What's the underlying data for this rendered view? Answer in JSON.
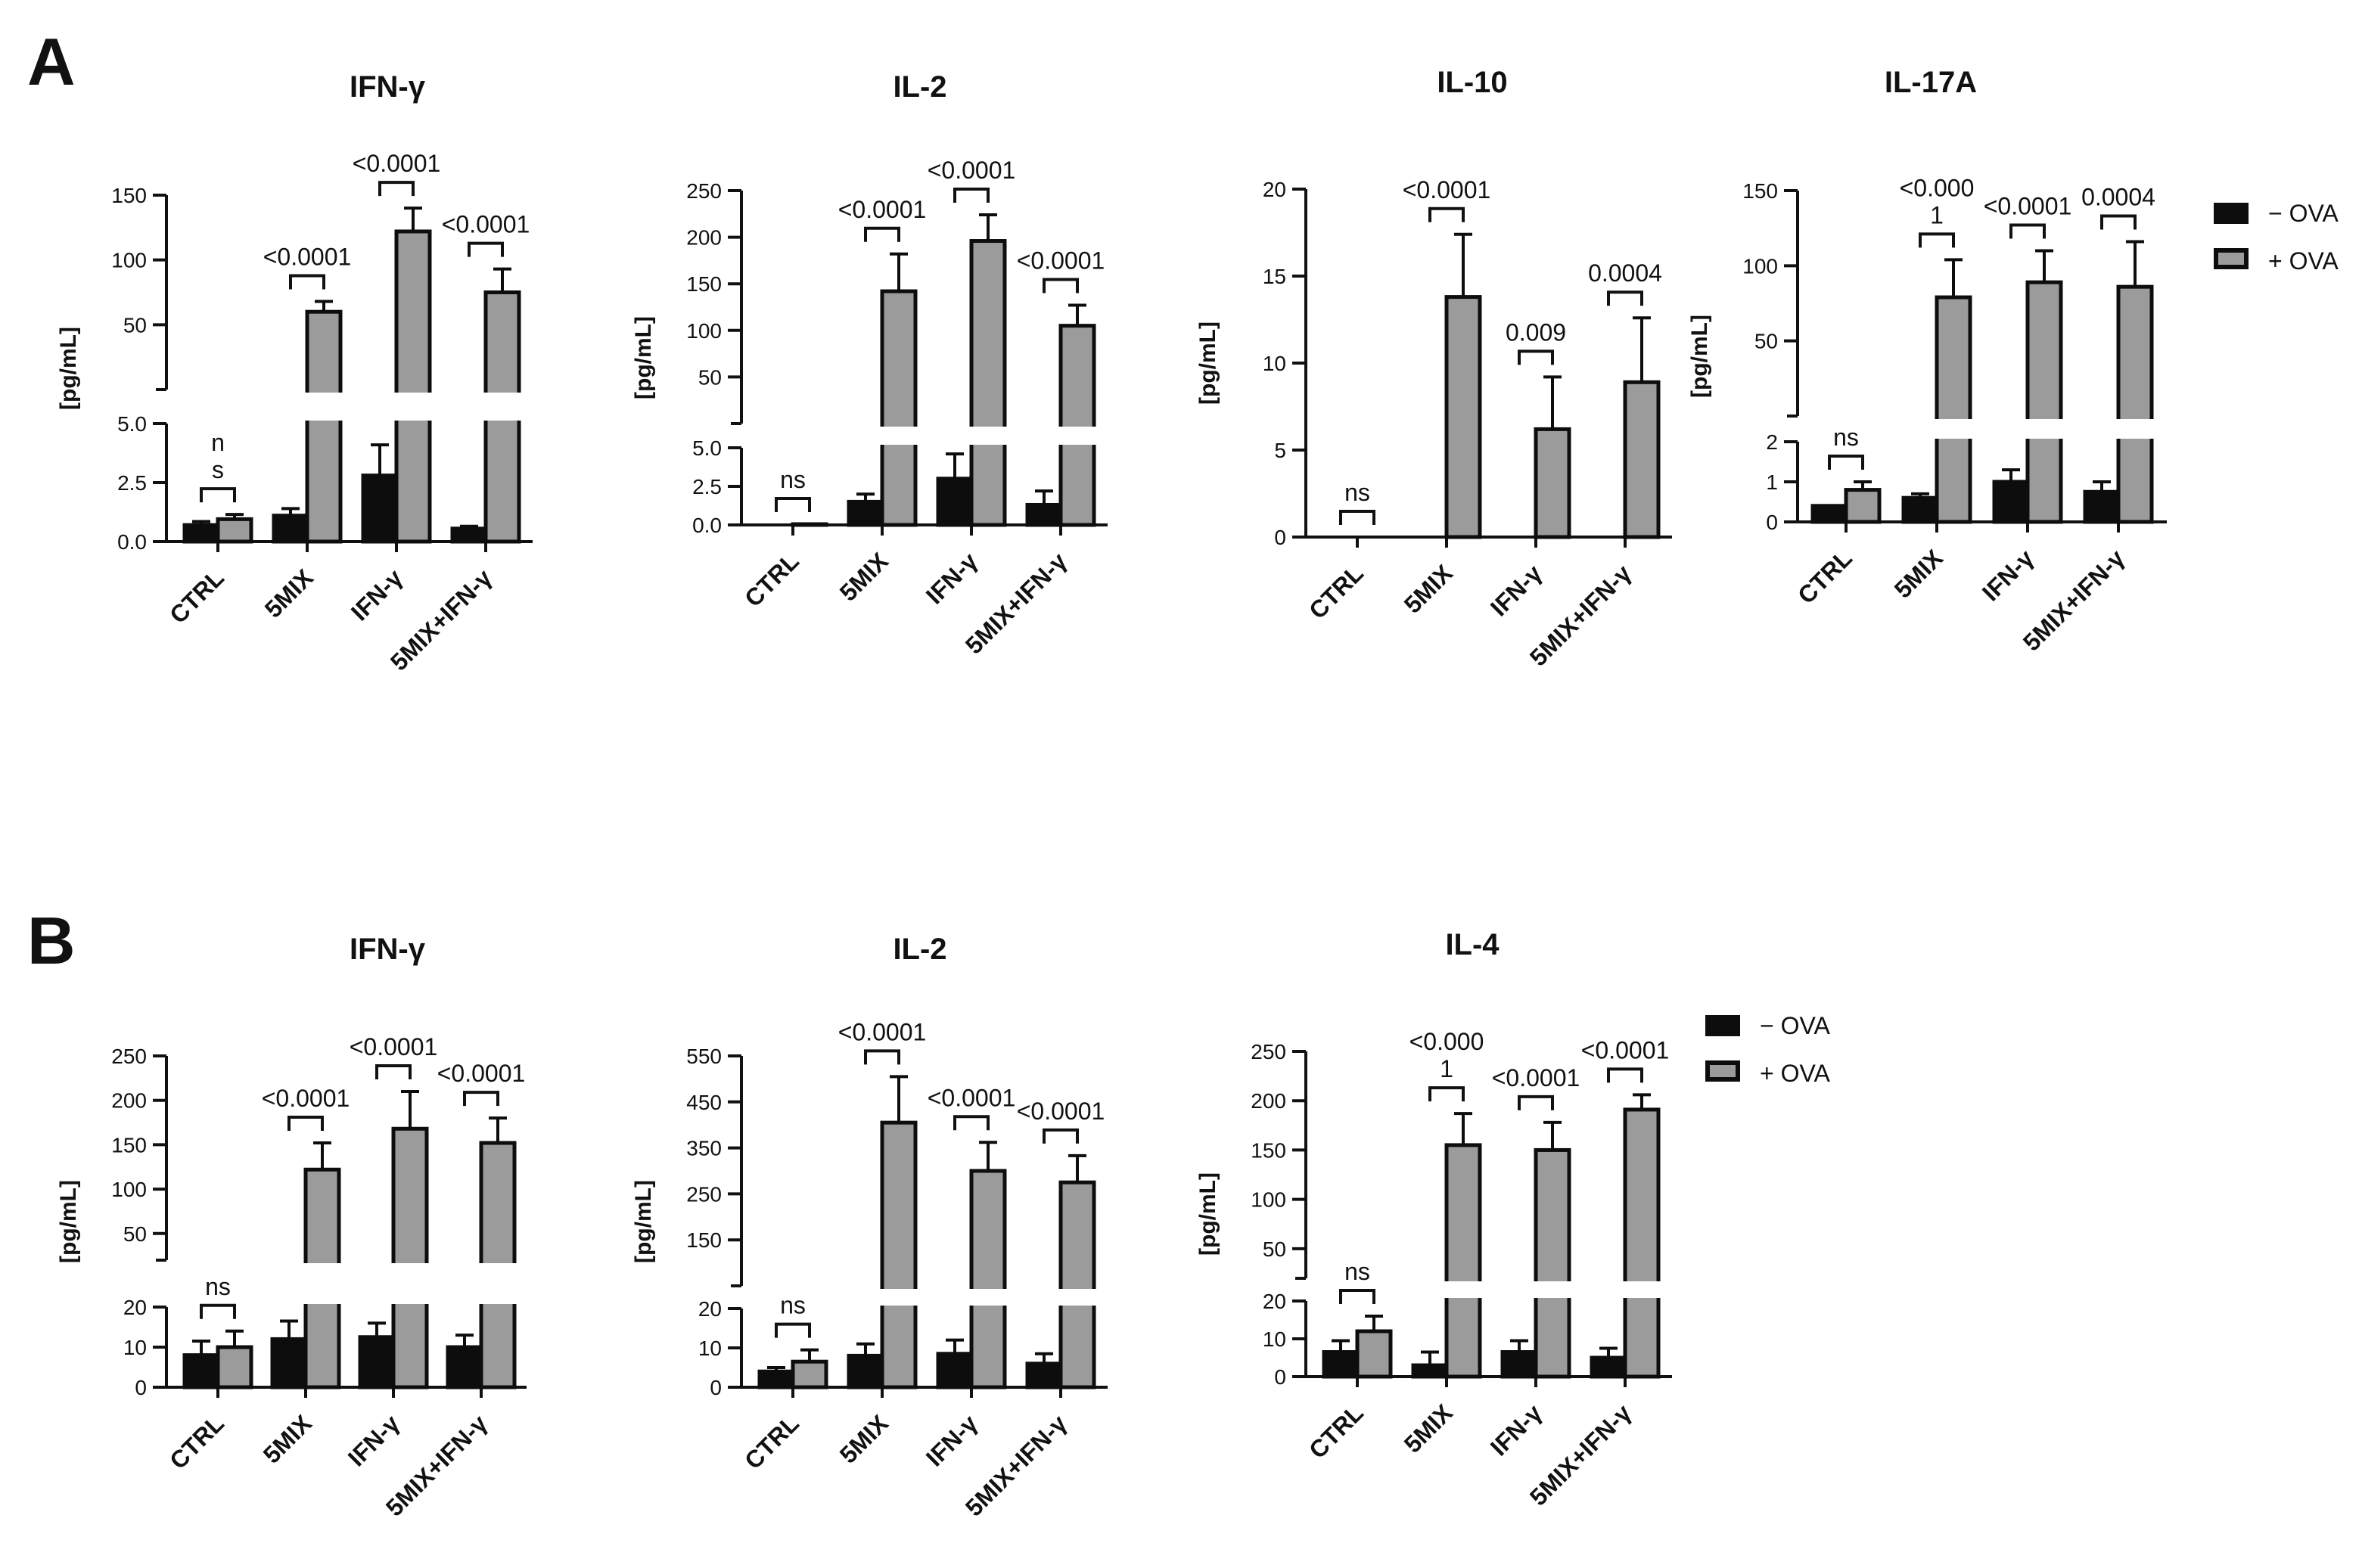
{
  "figure": {
    "legend_labels": [
      "− OVA",
      "+ OVA"
    ],
    "series_colors": {
      "neg": "#0d0d0d",
      "pos": "#9b9b9b"
    },
    "panels": [
      {
        "letter": "A"
      },
      {
        "letter": "B"
      }
    ]
  },
  "chart_data": [
    {
      "panel": "A",
      "type": "bar",
      "title": "IFN-γ",
      "ylabel": "[pg/mL]",
      "categories": [
        "CTRL",
        "5MIX",
        "IFN-γ",
        "5MIX+IFN-γ"
      ],
      "broken_axis": {
        "lower": [
          0,
          5
        ],
        "upper": [
          0,
          150
        ]
      },
      "lower_ticks": [
        "0.0",
        "2.5",
        "5.0"
      ],
      "lower_tick_values": [
        0,
        2.5,
        5
      ],
      "upper_ticks": [
        "50",
        "100",
        "150"
      ],
      "upper_tick_values": [
        50,
        100,
        150
      ],
      "series": [
        {
          "name": "− OVA",
          "values": [
            0.7,
            1.1,
            2.8,
            0.55
          ],
          "errors": [
            0.15,
            0.3,
            1.3,
            0.1
          ]
        },
        {
          "name": "+ OVA",
          "values": [
            0.95,
            60,
            122,
            75
          ],
          "errors": [
            0.2,
            8,
            18,
            18
          ]
        }
      ],
      "annotations": [
        "n\ns",
        "<0.0001",
        "<0.0001",
        "<0.0001"
      ]
    },
    {
      "panel": "A",
      "type": "bar",
      "title": "IL-2",
      "ylabel": "[pg/mL]",
      "categories": [
        "CTRL",
        "5MIX",
        "IFN-γ",
        "5MIX+IFN-γ"
      ],
      "broken_axis": {
        "lower": [
          0,
          5
        ],
        "upper": [
          0,
          250
        ]
      },
      "lower_ticks": [
        "0.0",
        "2.5",
        "5.0"
      ],
      "lower_tick_values": [
        0,
        2.5,
        5
      ],
      "upper_ticks": [
        "50",
        "100",
        "150",
        "200",
        "250"
      ],
      "upper_tick_values": [
        50,
        100,
        150,
        200,
        250
      ],
      "series": [
        {
          "name": "− OVA",
          "values": [
            0,
            1.5,
            3,
            1.3
          ],
          "errors": [
            0,
            0.5,
            1.6,
            0.9
          ]
        },
        {
          "name": "+ OVA",
          "values": [
            0.05,
            142,
            196,
            105
          ],
          "errors": [
            0,
            40,
            28,
            22
          ]
        }
      ],
      "annotations": [
        "ns",
        "<0.0001",
        "<0.0001",
        "<0.0001"
      ]
    },
    {
      "panel": "A",
      "type": "bar",
      "title": "IL-10",
      "ylabel": "[pg/mL]",
      "categories": [
        "CTRL",
        "5MIX",
        "IFN-γ",
        "5MIX+IFN-γ"
      ],
      "ylim": [
        0,
        20
      ],
      "ticks": [
        "0",
        "5",
        "10",
        "15",
        "20"
      ],
      "tick_values": [
        0,
        5,
        10,
        15,
        20
      ],
      "series": [
        {
          "name": "− OVA",
          "values": [
            0,
            0,
            0,
            0
          ],
          "errors": [
            0,
            0,
            0,
            0
          ]
        },
        {
          "name": "+ OVA",
          "values": [
            0,
            13.8,
            6.2,
            8.9
          ],
          "errors": [
            0,
            3.6,
            3.0,
            3.7
          ]
        }
      ],
      "annotations": [
        "ns",
        "<0.0001",
        "0.009",
        "0.0004"
      ]
    },
    {
      "panel": "A",
      "type": "bar",
      "title": "IL-17A",
      "ylabel": "[pg/mL]",
      "categories": [
        "CTRL",
        "5MIX",
        "IFN-γ",
        "5MIX+IFN-γ"
      ],
      "broken_axis": {
        "lower": [
          0,
          2
        ],
        "upper": [
          0,
          150
        ]
      },
      "lower_ticks": [
        "0",
        "1",
        "2"
      ],
      "lower_tick_values": [
        0,
        1,
        2
      ],
      "upper_ticks": [
        "50",
        "100",
        "150"
      ],
      "upper_tick_values": [
        50,
        100,
        150
      ],
      "series": [
        {
          "name": "− OVA",
          "values": [
            0.4,
            0.6,
            1.0,
            0.75
          ],
          "errors": [
            0,
            0.1,
            0.3,
            0.25
          ]
        },
        {
          "name": "+ OVA",
          "values": [
            0.8,
            79,
            89,
            86
          ],
          "errors": [
            0.2,
            25,
            21,
            30
          ]
        }
      ],
      "annotations": [
        "ns",
        "<0.000\n1",
        "<0.0001",
        "0.0004"
      ]
    },
    {
      "panel": "B",
      "type": "bar",
      "title": "IFN-γ",
      "ylabel": "[pg/mL]",
      "categories": [
        "CTRL",
        "5MIX",
        "IFN-γ",
        "5MIX+IFN-γ"
      ],
      "broken_axis": {
        "lower": [
          0,
          20
        ],
        "upper": [
          20,
          250
        ]
      },
      "lower_ticks": [
        "0",
        "10",
        "20"
      ],
      "lower_tick_values": [
        0,
        10,
        20
      ],
      "upper_ticks": [
        "50",
        "100",
        "150",
        "200",
        "250"
      ],
      "upper_tick_values": [
        50,
        100,
        150,
        200,
        250
      ],
      "series": [
        {
          "name": "− OVA",
          "values": [
            8,
            12,
            12.5,
            10
          ],
          "errors": [
            3.5,
            4.5,
            3.5,
            3
          ]
        },
        {
          "name": "+ OVA",
          "values": [
            10,
            122,
            168,
            152
          ],
          "errors": [
            4,
            30,
            42,
            28
          ]
        }
      ],
      "annotations": [
        "ns",
        "<0.0001",
        "<0.0001",
        "<0.0001"
      ]
    },
    {
      "panel": "B",
      "type": "bar",
      "title": "IL-2",
      "ylabel": "[pg/mL]",
      "categories": [
        "CTRL",
        "5MIX",
        "IFN-γ",
        "5MIX+IFN-γ"
      ],
      "broken_axis": {
        "lower": [
          0,
          20
        ],
        "upper": [
          50,
          550
        ]
      },
      "lower_ticks": [
        "0",
        "10",
        "20"
      ],
      "lower_tick_values": [
        0,
        10,
        20
      ],
      "upper_ticks": [
        "150",
        "250",
        "350",
        "450",
        "550"
      ],
      "upper_tick_values": [
        150,
        250,
        350,
        450,
        550
      ],
      "series": [
        {
          "name": "− OVA",
          "values": [
            4,
            8,
            8.5,
            6
          ],
          "errors": [
            1,
            3,
            3.5,
            2.5
          ]
        },
        {
          "name": "+ OVA",
          "values": [
            6.5,
            405,
            300,
            275
          ],
          "errors": [
            3,
            100,
            62,
            58
          ]
        }
      ],
      "annotations": [
        "ns",
        "<0.0001",
        "<0.0001",
        "<0.0001"
      ]
    },
    {
      "panel": "B",
      "type": "bar",
      "title": "IL-4",
      "ylabel": "[pg/mL]",
      "categories": [
        "CTRL",
        "5MIX",
        "IFN-γ",
        "5MIX+IFN-γ"
      ],
      "broken_axis": {
        "lower": [
          0,
          20
        ],
        "upper": [
          20,
          250
        ]
      },
      "lower_ticks": [
        "0",
        "10",
        "20"
      ],
      "lower_tick_values": [
        0,
        10,
        20
      ],
      "upper_ticks": [
        "50",
        "100",
        "150",
        "200",
        "250"
      ],
      "upper_tick_values": [
        50,
        100,
        150,
        200,
        250
      ],
      "series": [
        {
          "name": "− OVA",
          "values": [
            6.5,
            3,
            6.5,
            5
          ],
          "errors": [
            3,
            3.5,
            3,
            2.5
          ]
        },
        {
          "name": "+ OVA",
          "values": [
            12,
            155,
            150,
            191
          ],
          "errors": [
            4,
            32,
            28,
            15
          ]
        }
      ],
      "annotations": [
        "ns",
        "<0.000\n1",
        "<0.0001",
        "<0.0001"
      ]
    }
  ]
}
